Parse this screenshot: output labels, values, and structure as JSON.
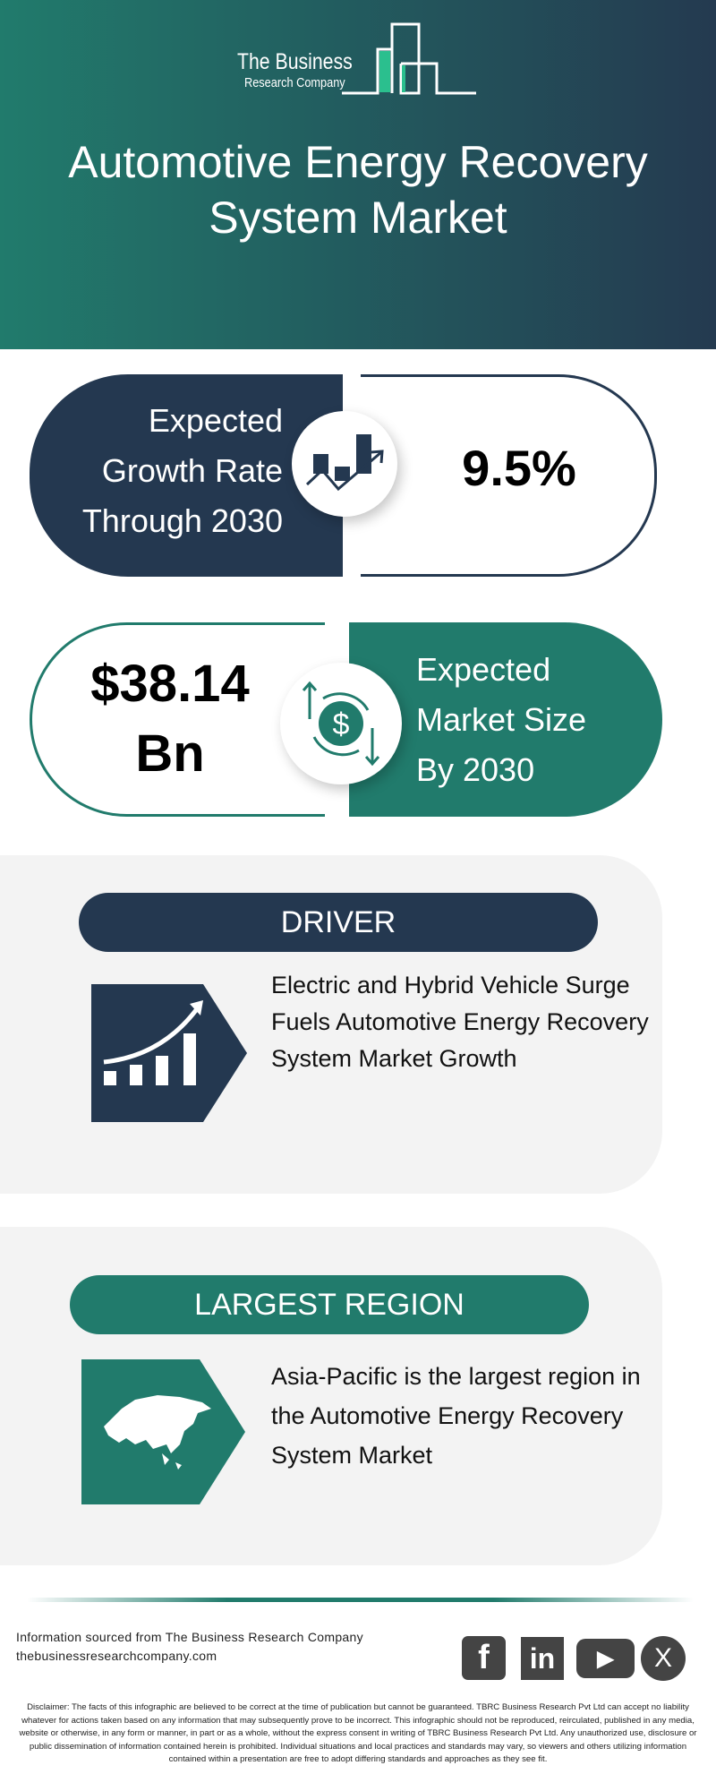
{
  "logo": {
    "line1": "The Business",
    "line2": "Research Company"
  },
  "title": {
    "line1": "Automotive Energy Recovery",
    "line2": "System Market"
  },
  "growth": {
    "label_lines": [
      "Expected",
      "Growth Rate",
      "Through 2030"
    ],
    "value": "9.5%",
    "icon": "growth-chart-icon"
  },
  "market_size": {
    "value_lines": [
      "$38.14",
      "Bn"
    ],
    "label_lines": [
      "Expected",
      "Market Size",
      "By 2030"
    ],
    "icon": "dollar-cycle-icon"
  },
  "driver": {
    "heading": "DRIVER",
    "text": "Electric and Hybrid Vehicle Surge Fuels Automotive Energy Recovery System Market Growth",
    "icon": "rising-bar-chart-icon"
  },
  "region": {
    "heading": "LARGEST REGION",
    "text": "Asia-Pacific is the largest region in the Automotive Energy Recovery System Market",
    "icon": "asia-map-icon"
  },
  "footer": {
    "source": "Information sourced from The Business Research Company",
    "website": "thebusinessresearchcompany.com",
    "social": [
      {
        "name": "facebook",
        "glyph": "f"
      },
      {
        "name": "linkedin",
        "glyph": "in"
      },
      {
        "name": "youtube",
        "glyph": "▶"
      },
      {
        "name": "x",
        "glyph": "X"
      }
    ],
    "disclaimer": "Disclaimer: The facts of this infographic are believed to be correct at the time of publication but cannot be guaranteed. TBRC Business Research Pvt Ltd can accept no liability whatever for actions taken based on any information that may subsequently prove to be incorrect. This infographic should not be reproduced, reirculated, published in any media, website or otherwise, in any form or manner, in part or as a whole, without the express consent in writing of TBRC Business Research Pvt Ltd. Any unauthorized use, disclosure or public dissemination of information contained herein is prohibited. Individual situations and local practices and standards may vary, so viewers and others utilizing information contained within a presentation are free to adopt differing standards and approaches as they see fit."
  },
  "colors": {
    "dark": "#243850",
    "green": "#217b6c",
    "panel": "#f3f3f3"
  }
}
